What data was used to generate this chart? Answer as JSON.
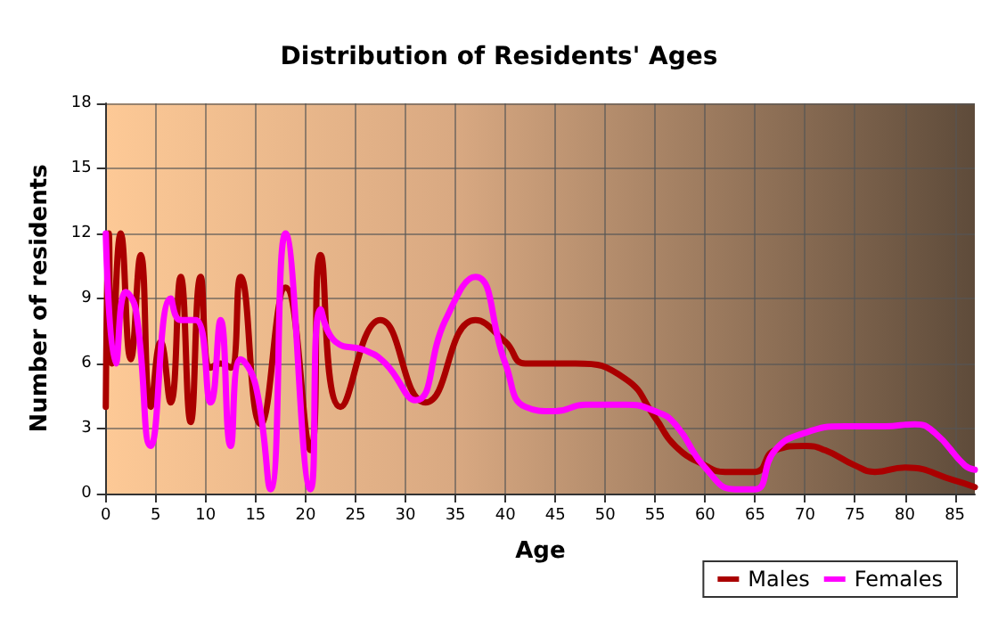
{
  "chart_data": {
    "type": "line",
    "title": "Distribution of Residents' Ages",
    "xlabel": "Age",
    "ylabel": "Number of residents",
    "xlim": [
      0,
      87
    ],
    "xticks": [
      0,
      5,
      10,
      15,
      20,
      25,
      30,
      35,
      40,
      45,
      50,
      55,
      60,
      65,
      70,
      75,
      80,
      85
    ],
    "ylim": [
      0,
      18
    ],
    "yticks": [
      0,
      3,
      6,
      9,
      12,
      15,
      18
    ],
    "grid": true,
    "legend": "bottom right",
    "marker": "none",
    "line_style": "solid",
    "series": [
      {
        "name": "Males",
        "color": "#aa0000",
        "x": [
          0,
          0.3,
          0.6,
          1.5,
          2.5,
          3.5,
          4.5,
          5.5,
          6.5,
          7.5,
          8.5,
          9.5,
          10.5,
          11.5,
          12.5,
          13.5,
          15.5,
          18,
          20.5,
          21.5,
          23.5,
          27.5,
          32,
          37,
          40,
          42,
          47,
          52,
          55,
          57,
          60,
          62,
          65,
          67,
          70,
          72,
          75,
          77,
          80,
          85,
          87
        ],
        "values": [
          4,
          12,
          6,
          12,
          6.2,
          11,
          4,
          7,
          4.2,
          10,
          3.3,
          10,
          5.8,
          6,
          5.8,
          10,
          3.2,
          9.5,
          2,
          11,
          4,
          8,
          4.2,
          8,
          7,
          6,
          6,
          5.3,
          3.5,
          2.2,
          1.3,
          1,
          1,
          2,
          2.2,
          2,
          1.3,
          1,
          1.2,
          0.6,
          0.3
        ]
      },
      {
        "name": "Females",
        "color": "#ff00ff",
        "x": [
          0,
          1,
          2,
          3,
          4.5,
          6.5,
          7.5,
          9,
          10.5,
          11.5,
          12.5,
          13.5,
          15,
          16.5,
          18,
          20.5,
          21.5,
          23,
          26,
          28,
          31,
          34,
          37,
          40,
          42,
          45,
          48,
          52,
          55,
          57,
          60,
          63,
          65,
          67,
          70,
          74,
          78,
          81,
          83,
          86,
          87
        ],
        "values": [
          12,
          6,
          9.3,
          8.5,
          2.2,
          9,
          8,
          8,
          4.2,
          8,
          2.2,
          6.2,
          5,
          0.2,
          12,
          0.2,
          8.5,
          7,
          6.6,
          6,
          4.3,
          8,
          10,
          6,
          4,
          3.8,
          4.1,
          4.1,
          3.8,
          3.2,
          1.2,
          0.2,
          0.2,
          2,
          2.8,
          3.1,
          3.1,
          3.2,
          2.8,
          1.3,
          1.1
        ]
      }
    ]
  }
}
